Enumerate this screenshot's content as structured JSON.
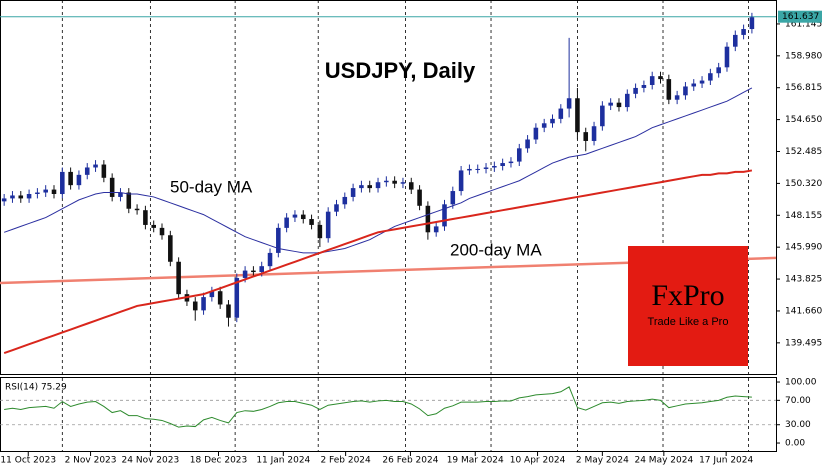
{
  "chart_data": {
    "type": "candlestick",
    "title": "USDJPY, Daily",
    "annotations": [
      {
        "text": "50-day MA",
        "color": "#3a46b4"
      },
      {
        "text": "200-day MA",
        "color": "#d9261c"
      }
    ],
    "logo": {
      "text": "FxPro",
      "slogan": "Trade Like a Pro",
      "color": "#e31b12"
    },
    "up_color": "#1d2f9e",
    "down_color": "#111111",
    "open": [
      149.1,
      149.3,
      149.5,
      149.3,
      149.6,
      149.7,
      149.9,
      149.6,
      151.1,
      150.2,
      150.9,
      151.4,
      151.6,
      150.7,
      149.4,
      149.7,
      148.6,
      148.5,
      147.5,
      147.3,
      146.8,
      145.0,
      142.8,
      142.3,
      141.7,
      142.6,
      143.0,
      142.1,
      141.2,
      143.9,
      144.4,
      144.3,
      144.7,
      145.6,
      147.3,
      148.0,
      148.2,
      147.9,
      147.5,
      146.6,
      148.4,
      148.9,
      149.4,
      150.0,
      150.2,
      150.0,
      150.4,
      150.5,
      150.3,
      150.4,
      149.9,
      148.8,
      147.0,
      147.4,
      148.9,
      149.8,
      151.2,
      151.3,
      151.3,
      151.4,
      151.5,
      151.7,
      151.8,
      152.7,
      153.3,
      154.1,
      154.4,
      154.7,
      155.4,
      156.1,
      153.8,
      153.2,
      154.2,
      155.6,
      155.8,
      155.5,
      156.4,
      156.8,
      157.0,
      157.6,
      157.4,
      156.0,
      156.3,
      156.9,
      157.1,
      157.3,
      157.8,
      158.2,
      159.6,
      160.4,
      160.8
    ],
    "high": [
      149.6,
      149.8,
      149.8,
      149.9,
      150.0,
      150.2,
      150.2,
      151.4,
      151.4,
      151.2,
      151.7,
      151.9,
      151.9,
      151.0,
      150.0,
      150.0,
      148.9,
      148.8,
      147.8,
      147.6,
      147.1,
      145.3,
      143.1,
      142.6,
      142.9,
      143.3,
      143.3,
      142.4,
      144.2,
      144.7,
      144.7,
      145.0,
      145.9,
      147.6,
      148.3,
      148.5,
      148.5,
      148.2,
      147.8,
      148.7,
      149.2,
      149.7,
      150.3,
      150.5,
      150.5,
      150.7,
      150.8,
      150.8,
      150.7,
      150.7,
      150.2,
      149.1,
      147.7,
      149.2,
      150.1,
      151.5,
      151.6,
      151.6,
      151.7,
      151.8,
      152.0,
      152.1,
      153.0,
      153.6,
      154.4,
      154.7,
      155.0,
      155.7,
      160.2,
      156.8,
      154.1,
      154.5,
      155.9,
      156.1,
      156.1,
      156.7,
      157.1,
      157.3,
      157.9,
      157.9,
      157.7,
      156.6,
      157.2,
      157.4,
      157.6,
      158.1,
      158.5,
      159.9,
      160.7,
      161.1,
      161.9
    ],
    "low": [
      148.8,
      149.0,
      149.0,
      149.0,
      149.3,
      149.4,
      149.3,
      149.3,
      149.9,
      149.9,
      150.6,
      151.1,
      150.4,
      149.1,
      149.1,
      148.3,
      148.2,
      147.2,
      147.0,
      146.5,
      144.7,
      142.5,
      142.0,
      141.0,
      141.4,
      142.3,
      141.8,
      140.6,
      140.9,
      143.6,
      144.0,
      144.0,
      144.4,
      145.3,
      147.0,
      147.7,
      147.6,
      147.2,
      146.0,
      146.3,
      148.1,
      148.6,
      149.1,
      149.7,
      149.7,
      149.7,
      150.1,
      150.0,
      150.0,
      149.6,
      148.5,
      146.5,
      146.7,
      147.1,
      148.6,
      149.5,
      150.9,
      151.0,
      151.0,
      151.1,
      151.2,
      151.4,
      151.5,
      152.4,
      153.0,
      153.8,
      154.1,
      154.4,
      154.8,
      153.3,
      152.5,
      152.9,
      153.9,
      155.3,
      155.2,
      155.2,
      156.1,
      156.5,
      156.7,
      157.1,
      155.7,
      155.7,
      156.0,
      156.6,
      156.8,
      157.0,
      157.5,
      157.9,
      159.3,
      160.1,
      160.5
    ],
    "close": [
      149.3,
      149.5,
      149.3,
      149.6,
      149.7,
      149.9,
      149.6,
      151.1,
      150.2,
      150.9,
      151.4,
      151.6,
      150.7,
      149.4,
      149.7,
      148.6,
      148.5,
      147.5,
      147.3,
      146.8,
      145.0,
      142.8,
      142.3,
      141.7,
      142.6,
      143.0,
      142.1,
      141.2,
      143.9,
      144.4,
      144.3,
      144.7,
      145.6,
      147.3,
      148.0,
      148.2,
      147.9,
      147.5,
      146.6,
      148.4,
      148.9,
      149.4,
      150.0,
      150.2,
      150.0,
      150.4,
      150.5,
      150.3,
      150.4,
      149.9,
      148.8,
      147.0,
      147.4,
      148.9,
      149.8,
      151.2,
      151.3,
      151.3,
      151.4,
      151.5,
      151.7,
      151.8,
      152.7,
      153.3,
      154.1,
      154.4,
      154.7,
      155.4,
      156.1,
      153.8,
      153.2,
      154.2,
      155.6,
      155.8,
      155.5,
      156.4,
      156.8,
      157.0,
      157.6,
      157.4,
      156.0,
      156.3,
      156.9,
      157.1,
      157.3,
      157.8,
      158.2,
      159.6,
      160.4,
      160.8,
      161.6
    ],
    "lines": [
      {
        "color": "#2b2fa0",
        "width": 1,
        "values": [
          147.0,
          147.2,
          147.4,
          147.6,
          147.8,
          148.0,
          148.3,
          148.6,
          148.9,
          149.2,
          149.4,
          149.6,
          149.7,
          149.7,
          149.7,
          149.6,
          149.6,
          149.5,
          149.4,
          149.2,
          149.0,
          148.8,
          148.6,
          148.4,
          148.2,
          147.9,
          147.6,
          147.3,
          147.0,
          146.7,
          146.5,
          146.3,
          146.1,
          145.9,
          145.8,
          145.7,
          145.6,
          145.6,
          145.6,
          145.7,
          145.8,
          145.9,
          146.1,
          146.3,
          146.5,
          146.8,
          147.1,
          147.4,
          147.6,
          147.8,
          148.0,
          148.2,
          148.4,
          148.6,
          148.8,
          149.0,
          149.3,
          149.5,
          149.7,
          149.9,
          150.1,
          150.3,
          150.5,
          150.8,
          151.1,
          151.4,
          151.7,
          151.9,
          152.1,
          152.2,
          152.3,
          152.5,
          152.7,
          152.9,
          153.1,
          153.3,
          153.5,
          153.8,
          154.1,
          154.3,
          154.5,
          154.7,
          154.9,
          155.1,
          155.3,
          155.5,
          155.7,
          155.9,
          156.2,
          156.5,
          156.8
        ]
      },
      {
        "color": "#d9261c",
        "width": 2,
        "values": [
          138.8,
          139.0,
          139.2,
          139.4,
          139.6,
          139.8,
          140.0,
          140.2,
          140.4,
          140.6,
          140.8,
          141.0,
          141.2,
          141.4,
          141.6,
          141.8,
          142.0,
          142.1,
          142.2,
          142.3,
          142.4,
          142.5,
          142.6,
          142.7,
          142.8,
          143.0,
          143.2,
          143.4,
          143.6,
          143.8,
          144.0,
          144.2,
          144.4,
          144.6,
          144.8,
          145.0,
          145.2,
          145.4,
          145.6,
          145.8,
          146.0,
          146.2,
          146.4,
          146.6,
          146.8,
          147.0,
          147.1,
          147.2,
          147.3,
          147.4,
          147.5,
          147.6,
          147.7,
          147.8,
          147.9,
          148.0,
          148.1,
          148.2,
          148.3,
          148.4,
          148.5,
          148.6,
          148.7,
          148.8,
          148.9,
          149.0,
          149.1,
          149.2,
          149.3,
          149.4,
          149.5,
          149.6,
          149.7,
          149.8,
          149.9,
          150.0,
          150.1,
          150.2,
          150.3,
          150.4,
          150.5,
          150.6,
          150.7,
          150.8,
          150.9,
          150.9,
          151.0,
          151.0,
          151.1,
          151.1,
          151.2
        ]
      }
    ],
    "level_line": {
      "color": "#f08070",
      "values": [
        143.56,
        145.26
      ]
    },
    "current_price": {
      "value": 161.637,
      "color": "#3aa6a6"
    },
    "xlim": [
      -0.5,
      92.9
    ],
    "ylim": [
      137.38,
      162.77
    ],
    "yticks": [
      161.145,
      {
        "value": 158.98,
        "label": "158.980"
      },
      156.815,
      {
        "value": 154.65,
        "label": "154.650"
      },
      152.485,
      {
        "value": 150.32,
        "label": "150.320"
      },
      148.155,
      {
        "value": 145.99,
        "label": "145.990"
      },
      143.825,
      {
        "value": 141.66,
        "label": "141.660"
      },
      139.495
    ],
    "xticks": [
      {
        "value": 2.9,
        "label": "11 Oct 2023"
      },
      {
        "value": 10.4,
        "label": "2 Nov 2023"
      },
      {
        "value": 17.6,
        "label": "24 Nov 2023"
      },
      {
        "value": 25.8,
        "label": "18 Dec 2023"
      },
      {
        "value": 33.6,
        "label": "11 Jan 2024"
      },
      {
        "value": 41.1,
        "label": "2 Feb 2024"
      },
      {
        "value": 48.9,
        "label": "26 Feb 2024"
      },
      {
        "value": 56.7,
        "label": "19 Mar 2024"
      },
      {
        "value": 64.2,
        "label": "10 Apr 2024"
      },
      {
        "value": 72.0,
        "label": "2 May 2024"
      },
      {
        "value": 79.4,
        "label": "24 May 2024"
      },
      {
        "value": 86.9,
        "label": "17 Jun 2024"
      }
    ],
    "xgrid": [
      7.0,
      17.6,
      27.8,
      37.8,
      48.3,
      58.6,
      69.0,
      79.3,
      89.6
    ],
    "rsi": {
      "label": "RSI(14) 75.29",
      "color": "#2e8b2e",
      "values": [
        55,
        57,
        55,
        58,
        59,
        60,
        57,
        68,
        60,
        64,
        67,
        68,
        60,
        50,
        53,
        45,
        45,
        40,
        39,
        37,
        32,
        26,
        28,
        27,
        38,
        42,
        37,
        33,
        50,
        53,
        52,
        55,
        60,
        66,
        68,
        68,
        65,
        62,
        55,
        62,
        64,
        66,
        68,
        69,
        67,
        69,
        70,
        68,
        68,
        64,
        56,
        45,
        48,
        57,
        61,
        67,
        67,
        67,
        68,
        68,
        69,
        69,
        74,
        76,
        79,
        80,
        81,
        84,
        92,
        58,
        54,
        60,
        66,
        67,
        65,
        68,
        69,
        70,
        72,
        70,
        58,
        61,
        64,
        65,
        66,
        68,
        70,
        75,
        77,
        76,
        75.29
      ],
      "ylim": [
        -14.7,
        106.6
      ],
      "yticks": [
        {
          "value": 100,
          "label": "100.00"
        },
        {
          "value": 70,
          "label": "70.00"
        },
        {
          "value": 30,
          "label": "30.00"
        },
        {
          "value": 0,
          "label": "0.00"
        }
      ]
    }
  }
}
